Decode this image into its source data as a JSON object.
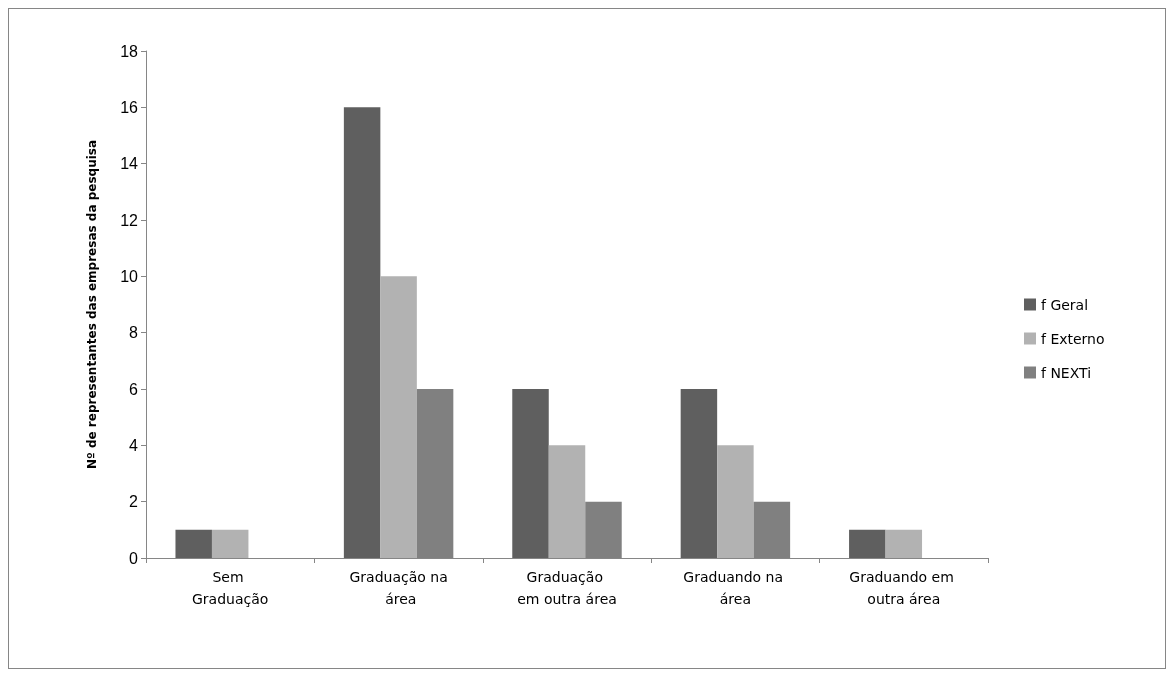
{
  "chart_data": {
    "type": "bar",
    "ylabel": "Nº de representantes das empresas da pesquisa",
    "categories": [
      "Sem Graduação",
      "Graduação na área",
      "Graduação em outra área",
      "Graduando na área",
      "Graduando em outra área"
    ],
    "series": [
      {
        "name": "f Geral",
        "color": "#5f5f5f",
        "values": [
          1,
          16,
          6,
          6,
          1
        ]
      },
      {
        "name": "f Externo",
        "color": "#b2b2b2",
        "values": [
          1,
          10,
          4,
          4,
          1
        ]
      },
      {
        "name": "f NEXTi",
        "color": "#808080",
        "values": [
          0,
          6,
          2,
          2,
          0
        ]
      }
    ],
    "ylim": [
      0,
      18
    ],
    "yticks": [
      0,
      2,
      4,
      6,
      8,
      10,
      12,
      14,
      16,
      18
    ],
    "grid": false,
    "legend": "right"
  }
}
